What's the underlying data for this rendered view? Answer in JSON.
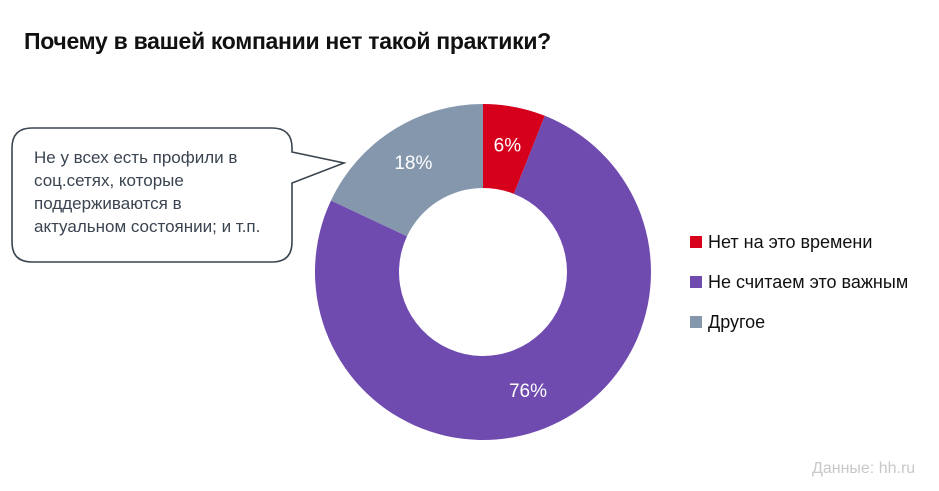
{
  "title": "Почему в вашей компании нет такой практики?",
  "callout": {
    "lines": [
      "Не у всех есть профили в",
      "соц.сетях, которые",
      "поддерживаются в",
      "актуальном состоянии; и т.п."
    ]
  },
  "legend": [
    {
      "label": "Нет на это времени",
      "color": "#d6001c"
    },
    {
      "label": "Не считаем это важным",
      "color": "#6f4bb0"
    },
    {
      "label": "Другое",
      "color": "#8597ad"
    }
  ],
  "source": "Данные: hh.ru",
  "slice_labels": [
    "6%",
    "76%",
    "18%"
  ],
  "chart_data": {
    "type": "pie",
    "subtype": "donut",
    "title": "Почему в вашей компании нет такой практики?",
    "categories": [
      "Нет на это времени",
      "Не считаем это важным",
      "Другое"
    ],
    "values": [
      6,
      76,
      18
    ],
    "unit": "%",
    "colors": [
      "#d6001c",
      "#6f4bb0",
      "#8597ad"
    ],
    "legend_position": "right",
    "annotation": "Не у всех есть профили в соц.сетях, которые поддерживаются в актуальном состоянии; и т.п.",
    "source": "Данные: hh.ru"
  }
}
